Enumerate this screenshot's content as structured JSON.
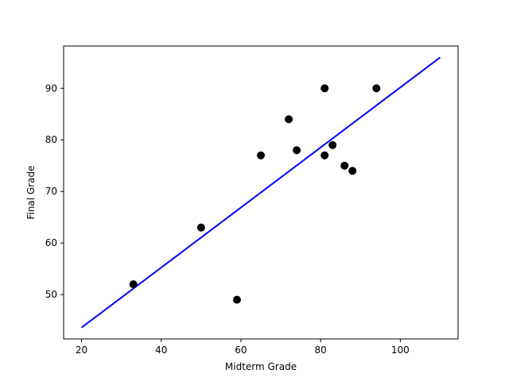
{
  "chart_data": {
    "type": "scatter",
    "title": "",
    "xlabel": "Midterm Grade",
    "ylabel": "Final Grade",
    "xlim": [
      15.5,
      114.5
    ],
    "ylim": [
      41.4,
      98.2
    ],
    "xticks": [
      20,
      40,
      60,
      80,
      100
    ],
    "yticks": [
      50,
      60,
      70,
      80,
      90
    ],
    "grid": false,
    "series": [
      {
        "kind": "scatter",
        "color": "#000000",
        "points": [
          {
            "x": 33,
            "y": 52
          },
          {
            "x": 50,
            "y": 63
          },
          {
            "x": 59,
            "y": 49
          },
          {
            "x": 65,
            "y": 77
          },
          {
            "x": 72,
            "y": 84
          },
          {
            "x": 74,
            "y": 78
          },
          {
            "x": 81,
            "y": 90
          },
          {
            "x": 81,
            "y": 77
          },
          {
            "x": 83,
            "y": 79
          },
          {
            "x": 86,
            "y": 75
          },
          {
            "x": 88,
            "y": 74
          },
          {
            "x": 94,
            "y": 90
          }
        ]
      },
      {
        "kind": "line",
        "color": "#0000ff",
        "points": [
          {
            "x": 20,
            "y": 43.6
          },
          {
            "x": 110,
            "y": 96.0
          }
        ]
      }
    ]
  }
}
